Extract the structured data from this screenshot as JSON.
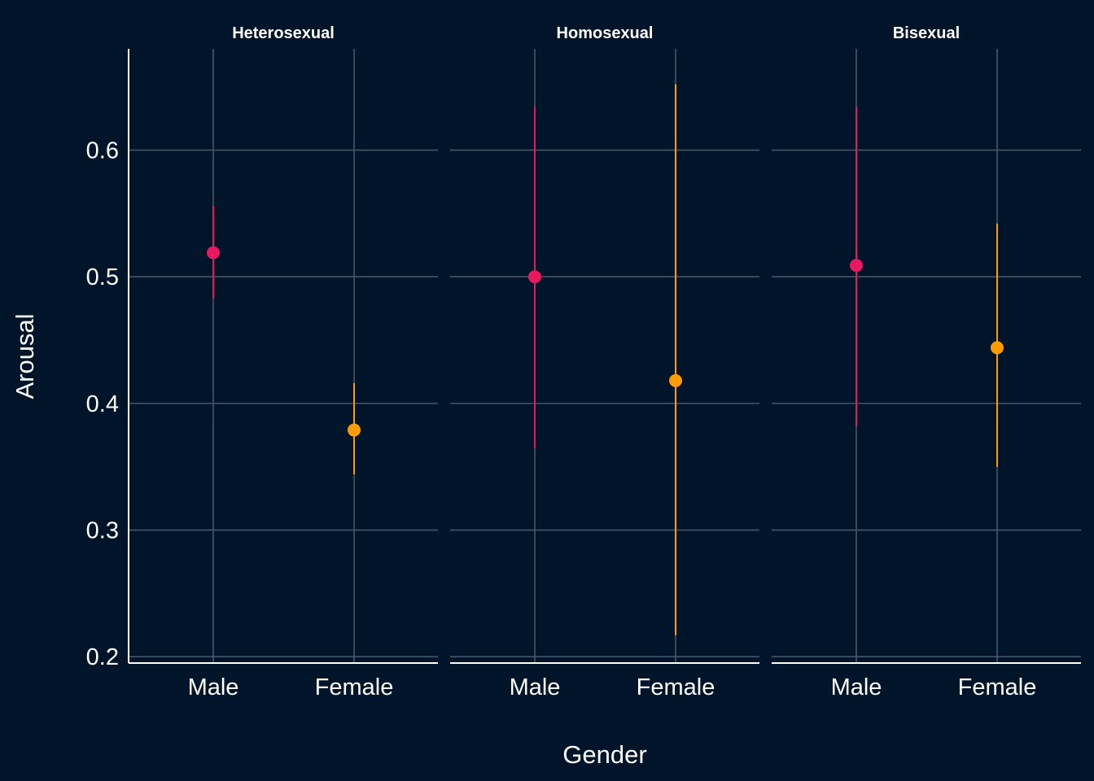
{
  "chart_data": {
    "type": "scatter",
    "subtype": "point-range, faceted",
    "xlabel": "Gender",
    "ylabel": "Arousal",
    "categories": [
      "Male",
      "Female"
    ],
    "ylim": [
      0.195,
      0.68
    ],
    "yticks": [
      0.2,
      0.3,
      0.4,
      0.5,
      0.6
    ],
    "ytick_labels": [
      "0.2",
      "0.3",
      "0.4",
      "0.5",
      "0.6"
    ],
    "grid": true,
    "legend": "none",
    "colors": {
      "Male": "#e8195e",
      "Female": "#ff9c00",
      "background": "#00142a",
      "grid": "#4a5566"
    },
    "facets": [
      {
        "label": "Heterosexual",
        "points": [
          {
            "category": "Male",
            "y": 0.519,
            "low": 0.483,
            "high": 0.556
          },
          {
            "category": "Female",
            "y": 0.379,
            "low": 0.344,
            "high": 0.416
          }
        ]
      },
      {
        "label": "Homosexual",
        "points": [
          {
            "category": "Male",
            "y": 0.5,
            "low": 0.365,
            "high": 0.634
          },
          {
            "category": "Female",
            "y": 0.418,
            "low": 0.217,
            "high": 0.652
          }
        ]
      },
      {
        "label": "Bisexual",
        "points": [
          {
            "category": "Male",
            "y": 0.509,
            "low": 0.382,
            "high": 0.634
          },
          {
            "category": "Female",
            "y": 0.444,
            "low": 0.35,
            "high": 0.542
          }
        ]
      }
    ]
  }
}
